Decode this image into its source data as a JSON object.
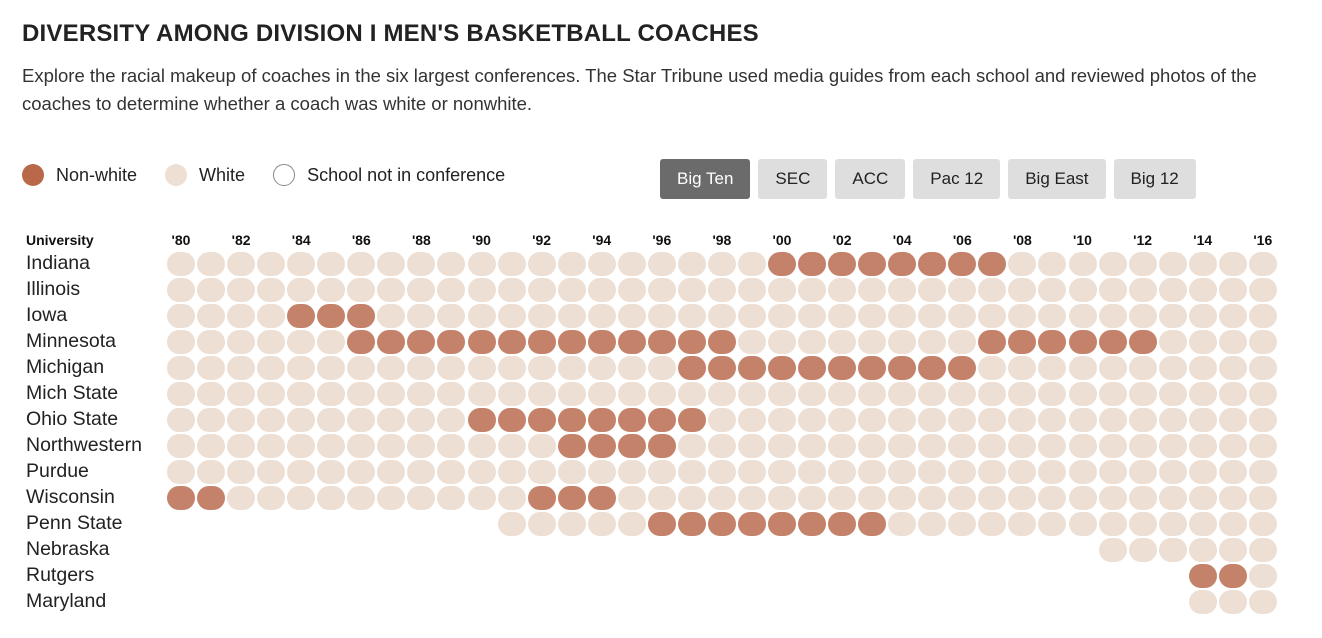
{
  "header": {
    "title": "DIVERSITY AMONG DIVISION I MEN'S BASKETBALL COACHES",
    "subtitle": "Explore the racial makeup of coaches in the six largest conferences. The Star Tribune used media guides from each school and reviewed photos of the coaches to determine whether a coach was white or nonwhite."
  },
  "legend": {
    "nonwhite": "Non-white",
    "white": "White",
    "notin": "School not in conference"
  },
  "colors": {
    "nonwhite": "#c4826a",
    "white": "#eddfd3",
    "notin_border": "#888888"
  },
  "tabs": [
    {
      "label": "Big Ten",
      "active": true
    },
    {
      "label": "SEC",
      "active": false
    },
    {
      "label": "ACC",
      "active": false
    },
    {
      "label": "Pac 12",
      "active": false
    },
    {
      "label": "Big East",
      "active": false
    },
    {
      "label": "Big 12",
      "active": false
    }
  ],
  "chart_data": {
    "type": "heatmap",
    "xlabel_header": "University",
    "years": [
      1980,
      1981,
      1982,
      1983,
      1984,
      1985,
      1986,
      1987,
      1988,
      1989,
      1990,
      1991,
      1992,
      1993,
      1994,
      1995,
      1996,
      1997,
      1998,
      1999,
      2000,
      2001,
      2002,
      2003,
      2004,
      2005,
      2006,
      2007,
      2008,
      2009,
      2010,
      2011,
      2012,
      2013,
      2014,
      2015,
      2016
    ],
    "year_labels": [
      "'80",
      "'82",
      "'84",
      "'86",
      "'88",
      "'90",
      "'92",
      "'94",
      "'96",
      "'98",
      "'00",
      "'02",
      "'04",
      "'06",
      "'08",
      "'10",
      "'12",
      "'14",
      "'16"
    ],
    "encoding": "N = Non-white, W = White, - = School not in conference",
    "rows": [
      {
        "university": "Indiana",
        "values": "WWWWWWWWWWWWWWWWWWWWNNNNNNNNWWWWWWWWW"
      },
      {
        "university": "Illinois",
        "values": "WWWWWWWWWWWWWWWWWWWWWWWWWWWWWWWWWWWWW"
      },
      {
        "university": "Iowa",
        "values": "WWWWNNNWWWWWWWWWWWWWWWWWWWWWWWWWWWWWW"
      },
      {
        "university": "Minnesota",
        "values": "WWWWWWNNNNNNNNNNNNNWWWWWWWWNNNNNNWWWW"
      },
      {
        "university": "Michigan",
        "values": "WWWWWWWWWWWWWWWWWNNNNNNNNNNWWWWWWWWWW"
      },
      {
        "university": "Mich State",
        "values": "WWWWWWWWWWWWWWWWWWWWWWWWWWWWWWWWWWWWW"
      },
      {
        "university": "Ohio State",
        "values": "WWWWWWWWWWNNNNNNNNWWWWWWWWWWWWWWWWWWW"
      },
      {
        "university": "Northwestern",
        "values": "WWWWWWWWWWWWWNNNNWWWWWWWWWWWWWWWWWWWW"
      },
      {
        "university": "Purdue",
        "values": "WWWWWWWWWWWWWWWWWWWWWWWWWWWWWWWWWWWWW"
      },
      {
        "university": "Wisconsin",
        "values": "NNWWWWWWWWWWNNNWWWWWWWWWWWWWWWWWWWWWW"
      },
      {
        "university": "Penn State",
        "values": "-----------WWWWWNNNNNNNNWWWWWWWWWWWWW"
      },
      {
        "university": "Nebraska",
        "values": "-------------------------------WWWWWW"
      },
      {
        "university": "Rutgers",
        "values": "----------------------------------NNW"
      },
      {
        "university": "Maryland",
        "values": "----------------------------------WWW"
      }
    ]
  }
}
